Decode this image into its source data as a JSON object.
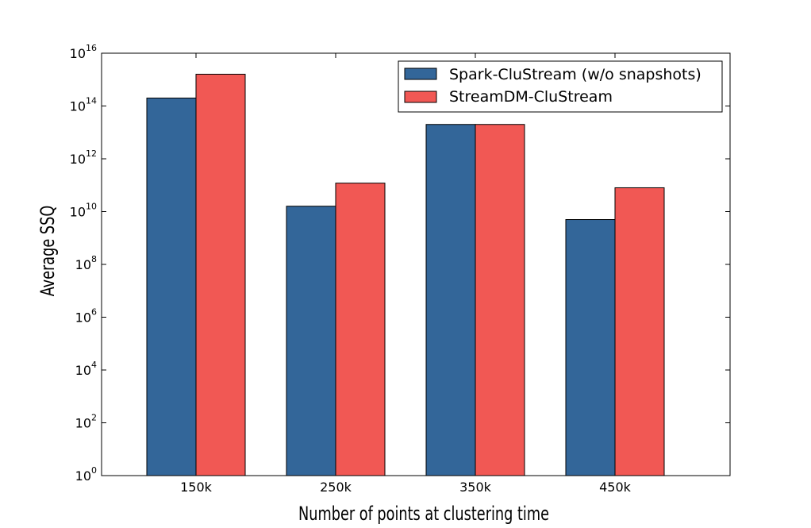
{
  "chart_data": {
    "type": "bar",
    "title": "",
    "xlabel": "Number of points at clustering time",
    "ylabel": "Average SSQ",
    "yscale": "log",
    "ylim": [
      1,
      1e+16
    ],
    "y_tick_labels": [
      {
        "base": "10",
        "exp": "0"
      },
      {
        "base": "10",
        "exp": "2"
      },
      {
        "base": "10",
        "exp": "4"
      },
      {
        "base": "10",
        "exp": "6"
      },
      {
        "base": "10",
        "exp": "8"
      },
      {
        "base": "10",
        "exp": "10"
      },
      {
        "base": "10",
        "exp": "12"
      },
      {
        "base": "10",
        "exp": "14"
      },
      {
        "base": "10",
        "exp": "16"
      }
    ],
    "categories": [
      "150k",
      "250k",
      "350k",
      "450k"
    ],
    "series": [
      {
        "name": "Spark-CluStream (w/o snapshots)",
        "color": "#336699",
        "values": [
          200000000000000.0,
          16000000000.0,
          20000000000000.0,
          5000000000.0
        ]
      },
      {
        "name": "StreamDM-CluStream",
        "color": "#f15854",
        "values": [
          1600000000000000.0,
          120000000000.0,
          20000000000000.0,
          80000000000.0
        ]
      }
    ],
    "legend_position": "top-right",
    "grid": false
  }
}
